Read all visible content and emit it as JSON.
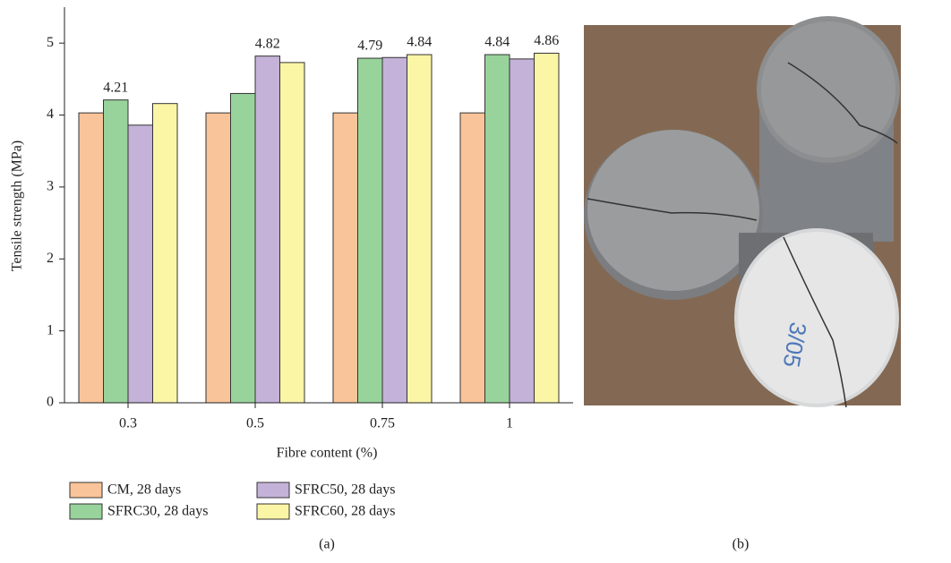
{
  "chart_data": {
    "type": "bar",
    "x_label": "Fibre content (%)",
    "y_label": "Tensile strength (MPa)",
    "categories": [
      "0.3",
      "0.5",
      "0.75",
      "1"
    ],
    "series": [
      {
        "name": "CM, 28 days",
        "color": "#f9c499",
        "values": [
          4.03,
          4.03,
          4.03,
          4.03
        ],
        "value_labels": [
          null,
          null,
          null,
          null
        ]
      },
      {
        "name": "SFRC30, 28 days",
        "color": "#98d39b",
        "values": [
          4.21,
          4.3,
          4.79,
          4.84
        ],
        "value_labels": [
          "4.21",
          null,
          "4.79",
          "4.84"
        ]
      },
      {
        "name": "SFRC50, 28 days",
        "color": "#c4b2d9",
        "values": [
          3.86,
          4.82,
          4.8,
          4.78
        ],
        "value_labels": [
          null,
          "4.82",
          null,
          null
        ]
      },
      {
        "name": "SFRC60, 28 days",
        "color": "#fbf5a6",
        "values": [
          4.16,
          4.73,
          4.84,
          4.86
        ],
        "value_labels": [
          null,
          null,
          "4.84",
          "4.86"
        ]
      }
    ],
    "ylim": [
      0,
      5.5
    ],
    "yticks": [
      0,
      1,
      2,
      3,
      4,
      5
    ],
    "caption": "(a)"
  },
  "photo": {
    "caption": "(b)"
  }
}
